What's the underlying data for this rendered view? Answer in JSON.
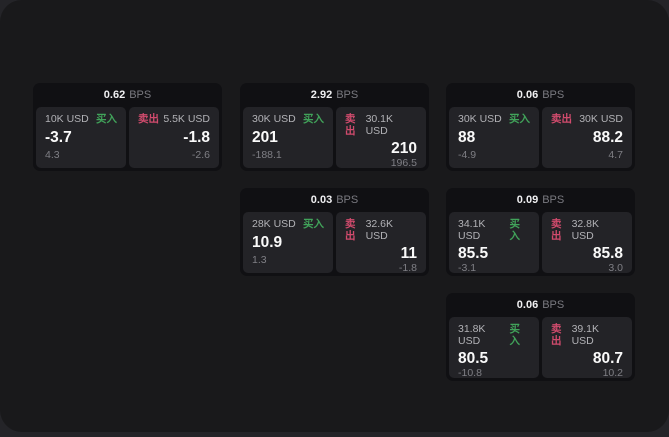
{
  "labels": {
    "buy": "买入",
    "sell": "卖出",
    "bps_unit": "BPS"
  },
  "colors": {
    "buy": "#41a35a",
    "sell": "#d14b6d",
    "outer": "#242428",
    "surface": "#19191b",
    "card": "#101013",
    "panel": "#232327"
  },
  "cards": [
    {
      "bps": "0.62",
      "buy": {
        "amount": "10K USD",
        "value": "-3.7",
        "sub": "4.3"
      },
      "sell": {
        "amount": "5.5K USD",
        "value": "-1.8",
        "sub": "-2.6"
      }
    },
    {
      "bps": "2.92",
      "buy": {
        "amount": "30K USD",
        "value": "201",
        "sub": "-188.1"
      },
      "sell": {
        "amount": "30.1K USD",
        "value": "210",
        "sub": "196.5"
      }
    },
    {
      "bps": "0.06",
      "buy": {
        "amount": "30K USD",
        "value": "88",
        "sub": "-4.9"
      },
      "sell": {
        "amount": "30K USD",
        "value": "88.2",
        "sub": "4.7"
      }
    },
    {
      "bps": "0.03",
      "buy": {
        "amount": "28K USD",
        "value": "10.9",
        "sub": "1.3"
      },
      "sell": {
        "amount": "32.6K USD",
        "value": "11",
        "sub": "-1.8"
      }
    },
    {
      "bps": "0.09",
      "buy": {
        "amount": "34.1K USD",
        "value": "85.5",
        "sub": "-3.1"
      },
      "sell": {
        "amount": "32.8K USD",
        "value": "85.8",
        "sub": "3.0"
      }
    },
    {
      "bps": "0.06",
      "buy": {
        "amount": "31.8K USD",
        "value": "80.5",
        "sub": "-10.8"
      },
      "sell": {
        "amount": "39.1K USD",
        "value": "80.7",
        "sub": "10.2"
      }
    }
  ]
}
